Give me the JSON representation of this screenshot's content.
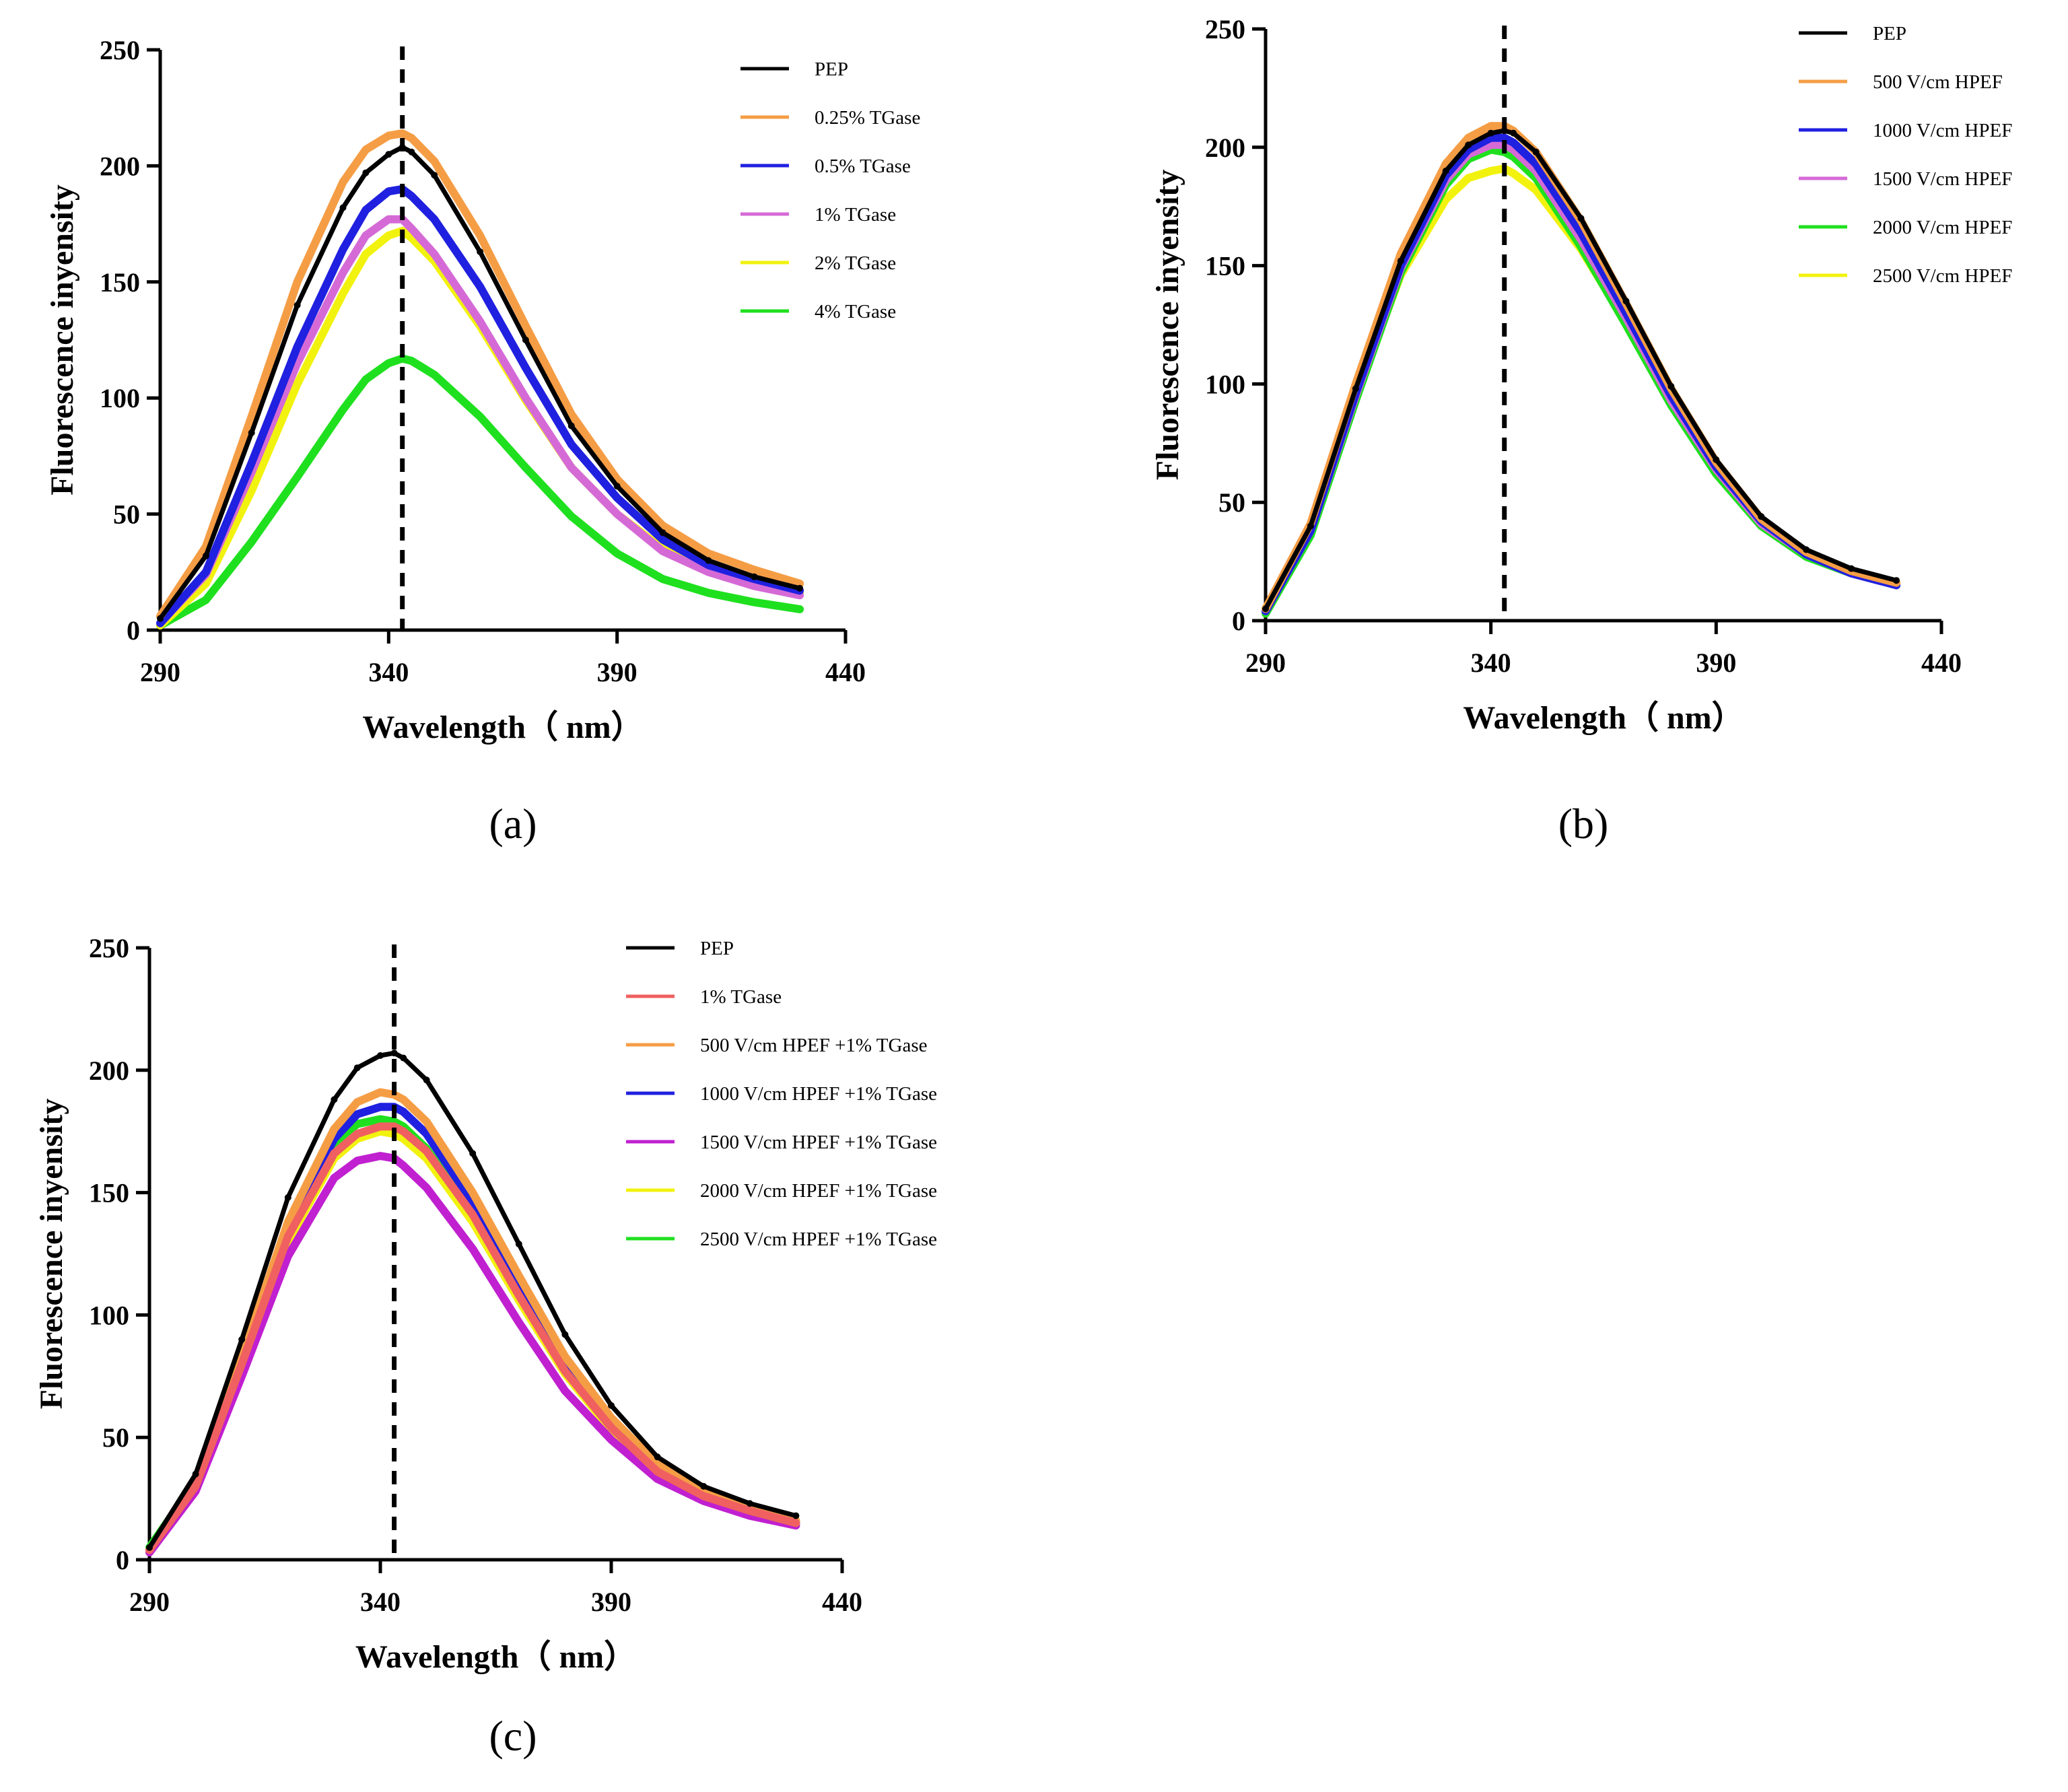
{
  "chart_data": [
    {
      "panel": "(a)",
      "type": "line",
      "xlabel": "Wavelength（  nm）",
      "ylabel": "Fluorescence inyensity",
      "xlim": [
        290,
        440
      ],
      "ylim": [
        0,
        250
      ],
      "xticks": [
        "290",
        "340",
        "390",
        "440"
      ],
      "yticks": [
        "0",
        "50",
        "100",
        "150",
        "200",
        "250"
      ],
      "vline_x": 343,
      "legend_position": "top-right",
      "x": [
        290,
        300,
        310,
        320,
        330,
        335,
        340,
        343,
        345,
        350,
        360,
        370,
        380,
        390,
        400,
        410,
        420,
        430
      ],
      "series": [
        {
          "name": "PEP",
          "color": "#000000",
          "values": [
            5,
            32,
            85,
            140,
            182,
            197,
            205,
            208,
            206,
            196,
            163,
            125,
            88,
            62,
            42,
            30,
            23,
            18
          ]
        },
        {
          "name": "0.25% TGase",
          "color": "#f59d45",
          "values": [
            6,
            36,
            92,
            150,
            193,
            207,
            213,
            214,
            212,
            202,
            170,
            131,
            93,
            65,
            45,
            33,
            26,
            20
          ]
        },
        {
          "name": "0.5% TGase",
          "color": "#2020e0",
          "values": [
            3,
            25,
            72,
            122,
            164,
            181,
            189,
            190,
            187,
            177,
            148,
            113,
            80,
            57,
            39,
            28,
            22,
            17
          ]
        },
        {
          "name": "1% TGase",
          "color": "#d56ad6",
          "values": [
            3,
            24,
            68,
            115,
            154,
            170,
            177,
            177,
            173,
            162,
            133,
            100,
            70,
            50,
            34,
            25,
            19,
            15
          ]
        },
        {
          "name": "2% TGase",
          "color": "#f2f20f",
          "values": [
            2,
            20,
            60,
            106,
            145,
            162,
            170,
            172,
            169,
            159,
            131,
            99,
            70,
            50,
            35,
            26,
            20,
            16
          ]
        },
        {
          "name": "4% TGase",
          "color": "#1fe01f",
          "values": [
            2,
            13,
            38,
            66,
            95,
            108,
            115,
            117,
            116,
            110,
            92,
            70,
            49,
            33,
            22,
            16,
            12,
            9
          ]
        }
      ]
    },
    {
      "panel": "(b)",
      "type": "line",
      "xlabel": "Wavelength（  nm）",
      "ylabel": "Fluorescence inyensity",
      "xlim": [
        290,
        440
      ],
      "ylim": [
        0,
        250
      ],
      "xticks": [
        "290",
        "340",
        "390",
        "440"
      ],
      "yticks": [
        "0",
        "50",
        "100",
        "150",
        "200",
        "250"
      ],
      "vline_x": 343,
      "legend_position": "top-right",
      "x": [
        290,
        300,
        310,
        320,
        330,
        335,
        340,
        343,
        345,
        350,
        360,
        370,
        380,
        390,
        400,
        410,
        420,
        430
      ],
      "series": [
        {
          "name": "PEP",
          "color": "#000000",
          "values": [
            5,
            40,
            98,
            152,
            190,
            201,
            206,
            207,
            206,
            198,
            170,
            135,
            99,
            68,
            44,
            30,
            22,
            17
          ]
        },
        {
          "name": "500    V/cm HPEF",
          "color": "#f59d45",
          "values": [
            5,
            41,
            100,
            155,
            193,
            204,
            209,
            209,
            207,
            198,
            169,
            134,
            98,
            67,
            43,
            29,
            21,
            16
          ]
        },
        {
          "name": "1000    V/cm HPEF",
          "color": "#2020e0",
          "values": [
            4,
            38,
            96,
            150,
            188,
            199,
            204,
            204,
            202,
            193,
            164,
            130,
            95,
            65,
            42,
            28,
            20,
            15
          ]
        },
        {
          "name": "1500    V/cm HPEF",
          "color": "#d56ad6",
          "values": [
            4,
            38,
            95,
            149,
            186,
            197,
            201,
            201,
            199,
            190,
            161,
            128,
            93,
            64,
            41,
            28,
            20,
            15
          ]
        },
        {
          "name": "2000    V/cm HPEF",
          "color": "#1fe01f",
          "values": [
            3,
            36,
            93,
            147,
            184,
            195,
            199,
            198,
            196,
            187,
            158,
            125,
            91,
            62,
            40,
            27,
            20,
            15
          ]
        },
        {
          "name": "2500    V/cm HPEF",
          "color": "#f2f20f",
          "values": [
            4,
            38,
            95,
            146,
            178,
            187,
            190,
            191,
            189,
            182,
            157,
            126,
            93,
            64,
            42,
            29,
            21,
            16
          ]
        }
      ]
    },
    {
      "panel": "(c)",
      "type": "line",
      "xlabel": "Wavelength（  nm）",
      "ylabel": "Fluorescence inyensity",
      "xlim": [
        290,
        440
      ],
      "ylim": [
        0,
        250
      ],
      "xticks": [
        "290",
        "340",
        "390",
        "440"
      ],
      "yticks": [
        "0",
        "50",
        "100",
        "150",
        "200",
        "250"
      ],
      "vline_x": 343,
      "legend_position": "top-right",
      "x": [
        290,
        300,
        310,
        320,
        330,
        335,
        340,
        343,
        345,
        350,
        360,
        370,
        380,
        390,
        400,
        410,
        420,
        430
      ],
      "series": [
        {
          "name": "PEP",
          "color": "#000000",
          "values": [
            5,
            35,
            90,
            148,
            188,
            201,
            206,
            207,
            205,
            196,
            166,
            129,
            92,
            63,
            42,
            30,
            23,
            18
          ]
        },
        {
          "name": "1% TGase",
          "color": "#f06060",
          "values": [
            4,
            30,
            80,
            132,
            166,
            174,
            177,
            177,
            175,
            167,
            141,
            108,
            77,
            54,
            36,
            26,
            20,
            15
          ]
        },
        {
          "name": "500    V/cm HPEF +1% TGase",
          "color": "#f59d45",
          "values": [
            4,
            31,
            83,
            138,
            176,
            187,
            191,
            190,
            188,
            179,
            150,
            116,
            83,
            58,
            39,
            28,
            21,
            16
          ]
        },
        {
          "name": "1000 V/cm HPEF +1% TGase",
          "color": "#2020e0",
          "values": [
            4,
            30,
            81,
            135,
            172,
            182,
            185,
            185,
            183,
            174,
            146,
            112,
            80,
            56,
            37,
            27,
            20,
            15
          ]
        },
        {
          "name": "1500 V/cm HPEF +1% TGase",
          "color": "#c020d0",
          "values": [
            3,
            28,
            75,
            124,
            156,
            163,
            165,
            164,
            161,
            152,
            127,
            97,
            69,
            49,
            33,
            24,
            18,
            14
          ]
        },
        {
          "name": "2000 V/cm HPEF +1% TGase",
          "color": "#f2f20f",
          "values": [
            4,
            30,
            79,
            130,
            164,
            172,
            175,
            174,
            172,
            164,
            138,
            106,
            76,
            53,
            36,
            26,
            20,
            15
          ]
        },
        {
          "name": "2500 V/cm HPEF +1% TGase",
          "color": "#1fe01f",
          "values": [
            5,
            32,
            83,
            135,
            170,
            178,
            180,
            179,
            177,
            168,
            141,
            108,
            77,
            54,
            37,
            27,
            21,
            16
          ]
        }
      ]
    }
  ]
}
